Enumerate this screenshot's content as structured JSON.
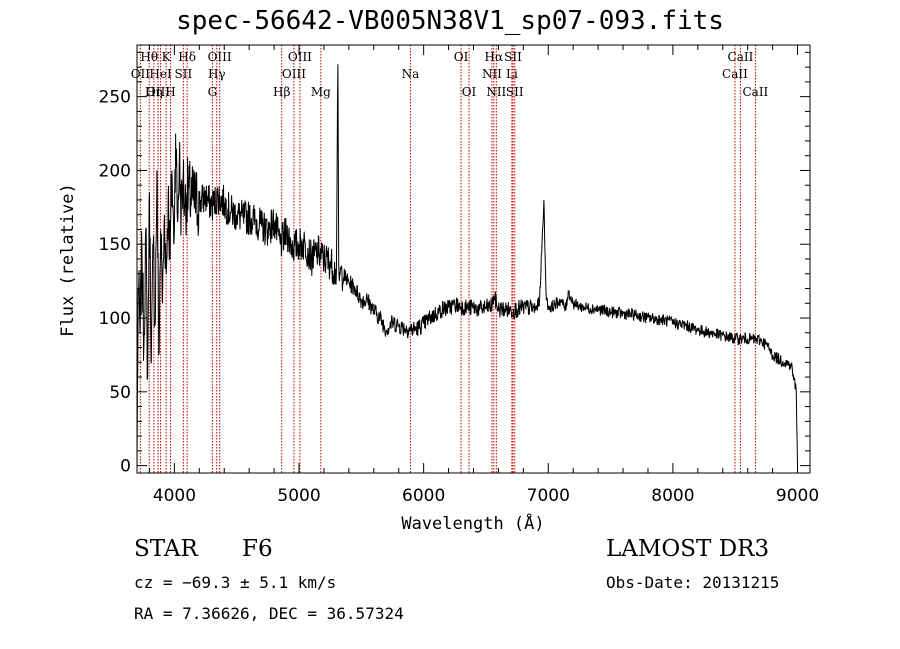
{
  "header": {
    "title": "spec-56642-VB005N38V1_sp07-093.fits"
  },
  "info": {
    "object_class": "STAR",
    "subclass": "F6",
    "survey": "LAMOST DR3",
    "cz": "cz = −69.3 ± 5.1 km/s",
    "obs_date": "Obs-Date: 20131215",
    "ra_dec": "RA =   7.36626, DEC =  36.57324"
  },
  "chart_data": {
    "type": "line",
    "title": "spec-56642-VB005N38V1_sp07-093.fits",
    "xlabel": "Wavelength (Å)",
    "ylabel": "Flux (relative)",
    "xlim": [
      3700,
      9100
    ],
    "ylim": [
      -5,
      285
    ],
    "xticks": [
      4000,
      5000,
      6000,
      7000,
      8000,
      9000
    ],
    "yticks": [
      0,
      50,
      100,
      150,
      200,
      250
    ],
    "line_color": "#000000",
    "marker_color": "#cc0000",
    "series": [
      {
        "name": "flux",
        "x": [
          3700,
          3710,
          3725,
          3740,
          3755,
          3770,
          3785,
          3800,
          3815,
          3830,
          3845,
          3860,
          3875,
          3890,
          3905,
          3920,
          3935,
          3950,
          3965,
          3980,
          3995,
          4010,
          4025,
          4040,
          4055,
          4070,
          4085,
          4100,
          4150,
          4200,
          4250,
          4300,
          4350,
          4400,
          4450,
          4500,
          4550,
          4600,
          4650,
          4700,
          4750,
          4800,
          4850,
          4900,
          4950,
          5000,
          5050,
          5100,
          5150,
          5200,
          5250,
          5300,
          5312,
          5318,
          5324,
          5330,
          5345,
          5400,
          5450,
          5500,
          5550,
          5600,
          5650,
          5700,
          5750,
          5800,
          5850,
          5900,
          5950,
          6000,
          6050,
          6100,
          6150,
          6200,
          6250,
          6300,
          6350,
          6400,
          6450,
          6500,
          6550,
          6563,
          6600,
          6650,
          6700,
          6750,
          6800,
          6850,
          6900,
          6930,
          6950,
          6965,
          6975,
          6985,
          7000,
          7020,
          7050,
          7100,
          7140,
          7160,
          7200,
          7250,
          7300,
          7400,
          7500,
          7600,
          7700,
          7800,
          7900,
          8000,
          8100,
          8200,
          8300,
          8400,
          8500,
          8600,
          8700,
          8750,
          8800,
          8850,
          8900,
          8950,
          8990,
          9000
        ],
        "values": [
          0,
          120,
          90,
          145,
          80,
          160,
          60,
          185,
          70,
          150,
          95,
          200,
          75,
          160,
          110,
          170,
          130,
          185,
          140,
          200,
          150,
          225,
          165,
          210,
          170,
          195,
          175,
          185,
          180,
          178,
          182,
          176,
          182,
          178,
          172,
          170,
          168,
          168,
          166,
          162,
          160,
          165,
          150,
          158,
          148,
          150,
          150,
          140,
          145,
          140,
          138,
          130,
          272,
          138,
          125,
          130,
          130,
          124,
          120,
          112,
          112,
          105,
          100,
          92,
          97,
          95,
          93,
          92,
          93,
          96,
          100,
          103,
          106,
          107,
          109,
          108,
          107,
          107,
          106,
          107,
          108,
          115,
          106,
          106,
          105,
          106,
          107,
          107,
          106,
          112,
          150,
          180,
          140,
          112,
          108,
          107,
          109,
          112,
          106,
          118,
          110,
          108,
          107,
          106,
          104,
          103,
          102,
          100,
          99,
          97,
          95,
          92,
          90,
          88,
          86,
          86,
          85,
          82,
          75,
          72,
          70,
          68,
          50,
          0
        ]
      }
    ],
    "markers": [
      {
        "label": "Hθ",
        "wavelength": 3798,
        "row": 0
      },
      {
        "label": "OII",
        "wavelength": 3727,
        "row": 1
      },
      {
        "label": "OIII",
        "wavelength": 3869,
        "row": 2
      },
      {
        "label": "K",
        "wavelength": 3934,
        "row": 0
      },
      {
        "label": "HeI",
        "wavelength": 3889,
        "row": 1
      },
      {
        "label": "Hη",
        "wavelength": 3835,
        "row": 2
      },
      {
        "label": "Hδ",
        "wavelength": 4102,
        "row": 0
      },
      {
        "label": "SII",
        "wavelength": 4072,
        "row": 1
      },
      {
        "label": "H",
        "wavelength": 3969,
        "row": 2
      },
      {
        "label": "OIII",
        "wavelength": 4363,
        "row": 0
      },
      {
        "label": "Hγ",
        "wavelength": 4340,
        "row": 1
      },
      {
        "label": "G",
        "wavelength": 4305,
        "row": 2
      },
      {
        "label": "OIII",
        "wavelength": 5007,
        "row": 0
      },
      {
        "label": "OIII",
        "wavelength": 4959,
        "row": 1
      },
      {
        "label": "Hβ",
        "wavelength": 4861,
        "row": 2
      },
      {
        "label": "Mg",
        "wavelength": 5175,
        "row": 2
      },
      {
        "label": "Na",
        "wavelength": 5894,
        "row": 1
      },
      {
        "label": "OI",
        "wavelength": 6300,
        "row": 0
      },
      {
        "label": "OI",
        "wavelength": 6364,
        "row": 2
      },
      {
        "label": "Hα",
        "wavelength": 6563,
        "row": 0
      },
      {
        "label": "NII",
        "wavelength": 6548,
        "row": 1
      },
      {
        "label": "NII",
        "wavelength": 6583,
        "row": 2
      },
      {
        "label": "SII",
        "wavelength": 6717,
        "row": 0
      },
      {
        "label": "Li",
        "wavelength": 6708,
        "row": 1
      },
      {
        "label": "SII",
        "wavelength": 6731,
        "row": 2
      },
      {
        "label": "CaII",
        "wavelength": 8542,
        "row": 0
      },
      {
        "label": "CaII",
        "wavelength": 8498,
        "row": 1
      },
      {
        "label": "CaII",
        "wavelength": 8662,
        "row": 2
      }
    ]
  }
}
